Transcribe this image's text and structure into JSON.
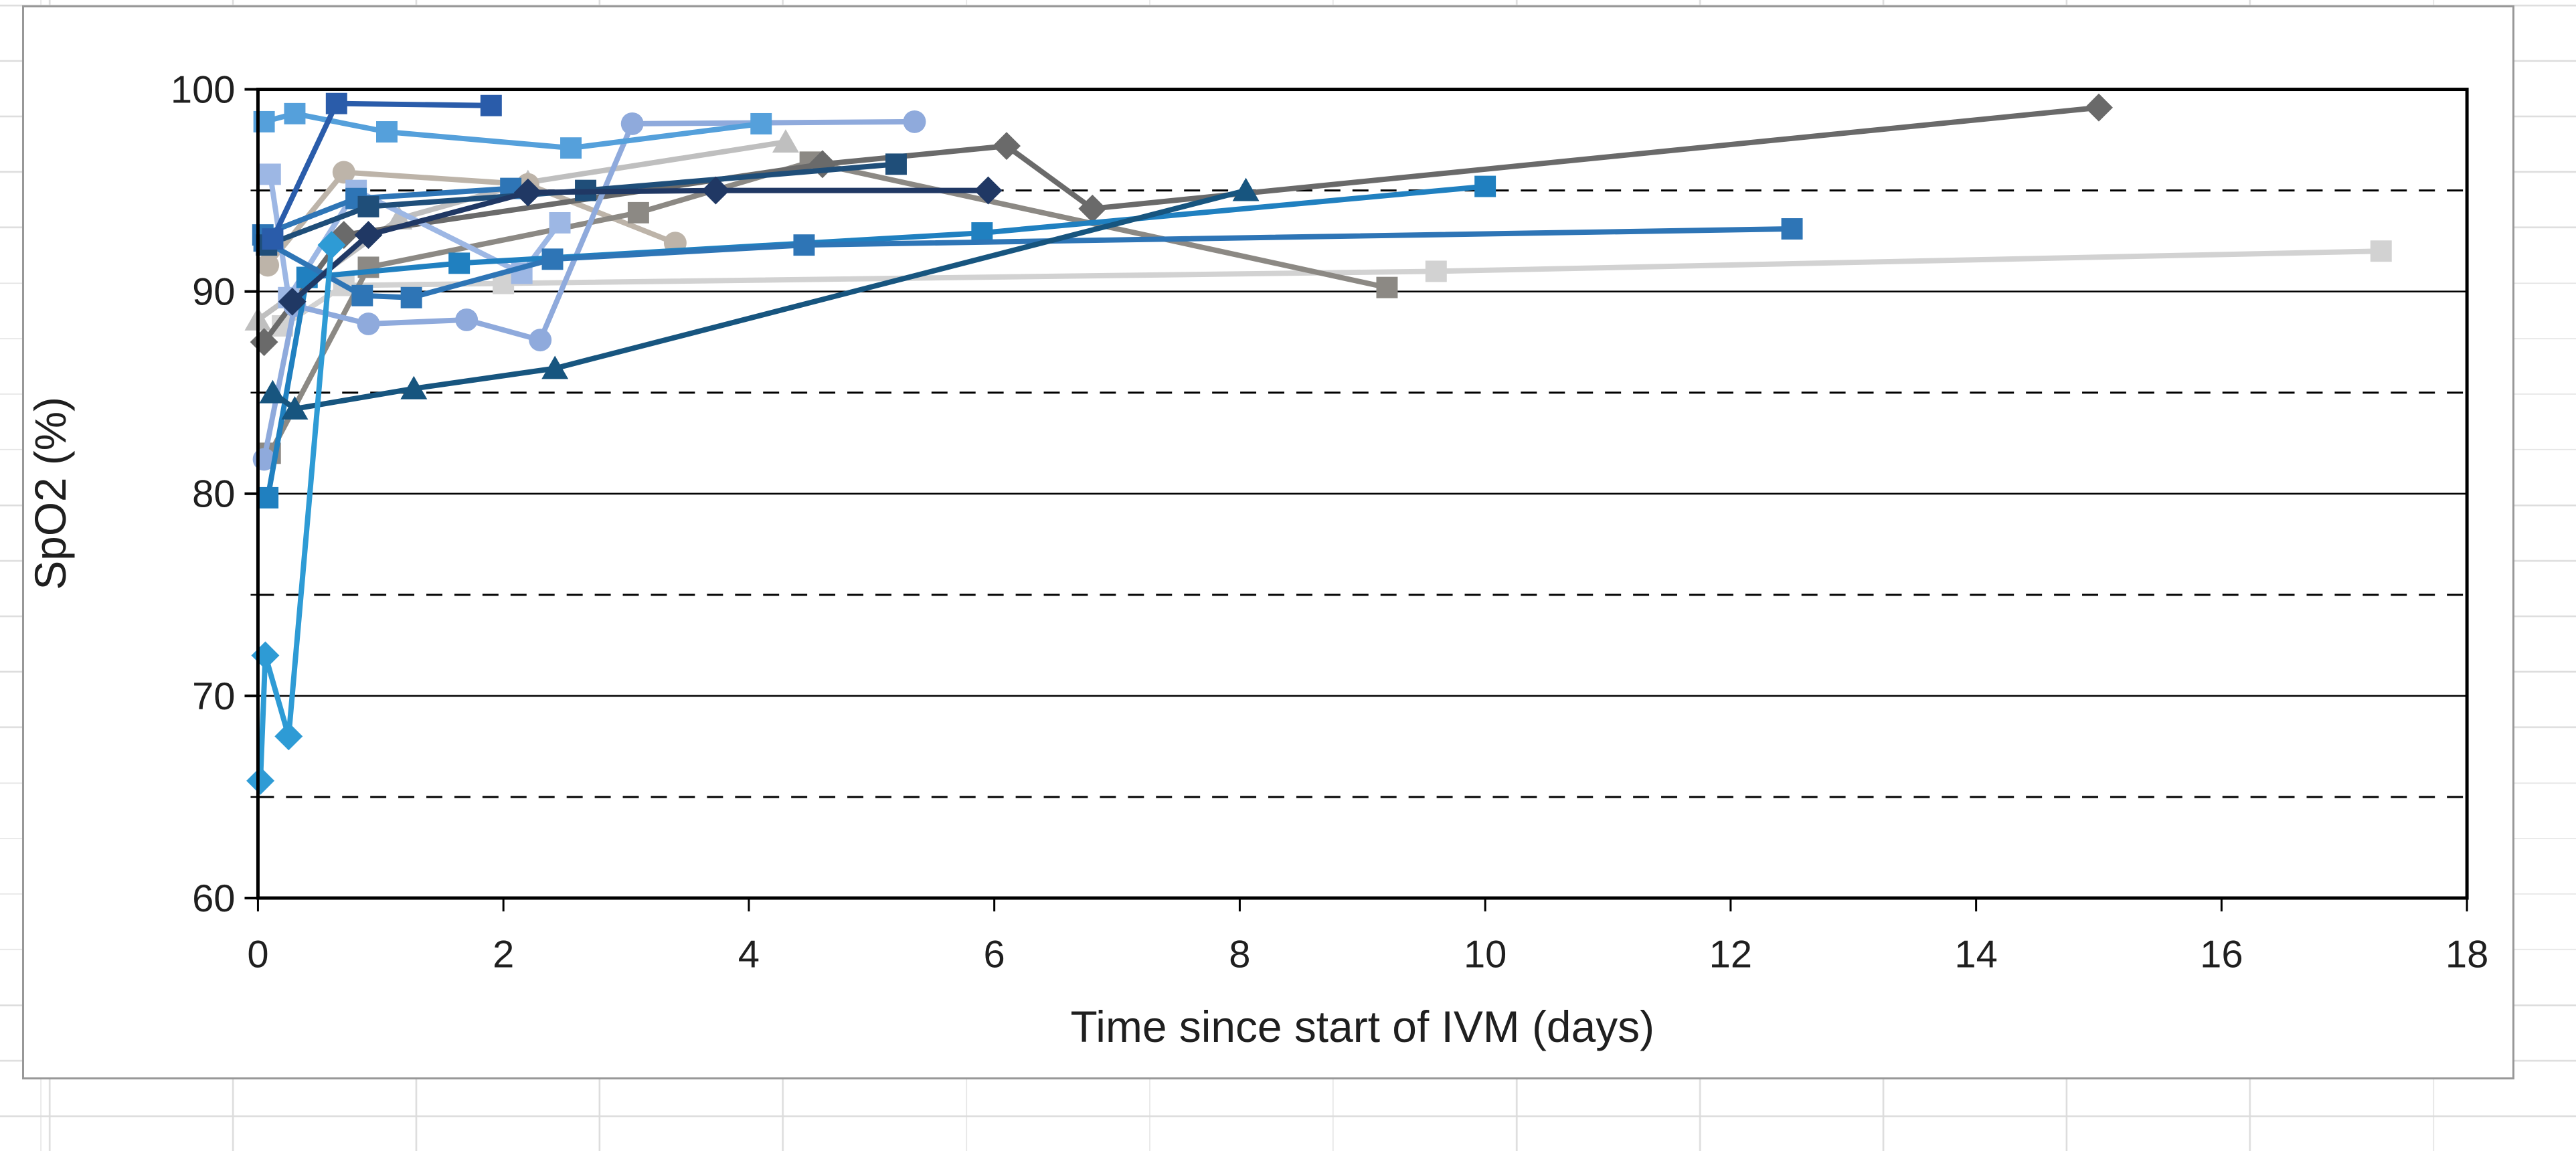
{
  "window": {
    "kind": "spreadsheet-embedded-chart",
    "chart_border_color": "#989898",
    "cell_grid_color": "#dcdcdc"
  },
  "chart_data": {
    "type": "line",
    "title": "",
    "xlabel": "Time since start of IVM (days)",
    "ylabel": "SpO2 (%)",
    "xlim": [
      0,
      18
    ],
    "ylim": [
      60,
      100
    ],
    "x_ticks": [
      0,
      2,
      4,
      6,
      8,
      10,
      12,
      14,
      16,
      18
    ],
    "y_ticks": [
      60,
      70,
      80,
      90,
      100
    ],
    "major_gridlines": [
      60,
      70,
      80,
      90,
      100
    ],
    "minor_gridlines_dashed": [
      65,
      75,
      85,
      95
    ],
    "legend": "none",
    "grid": "major solid black, minor dashed black",
    "axis_color": "#000000",
    "series": [
      {
        "name": "series-14",
        "color": "#D2D2D2",
        "marker": "square",
        "points": [
          [
            0.2,
            88.3
          ],
          [
            0.7,
            90.3
          ],
          [
            2.0,
            90.4
          ],
          [
            9.6,
            91.0
          ],
          [
            17.3,
            92.0
          ]
        ]
      },
      {
        "name": "series-15",
        "color": "#BFBFBF",
        "marker": "triangle",
        "points": [
          [
            0.0,
            88.6
          ],
          [
            1.15,
            93.6
          ],
          [
            2.2,
            95.4
          ],
          [
            4.3,
            97.4
          ]
        ]
      },
      {
        "name": "series-16",
        "color": "#BDB4A9",
        "marker": "circle",
        "points": [
          [
            0.08,
            91.3
          ],
          [
            0.7,
            95.9
          ],
          [
            2.2,
            95.3
          ],
          [
            3.4,
            92.4
          ]
        ]
      },
      {
        "name": "series-13",
        "color": "#8C8984",
        "marker": "square",
        "points": [
          [
            0.1,
            82.0
          ],
          [
            0.9,
            91.2
          ],
          [
            3.1,
            93.9
          ],
          [
            4.5,
            96.4
          ],
          [
            9.2,
            90.2
          ]
        ]
      },
      {
        "name": "series-12",
        "color": "#6A6A6A",
        "marker": "diamond",
        "points": [
          [
            0.05,
            87.5
          ],
          [
            0.7,
            92.8
          ],
          [
            4.6,
            96.3
          ],
          [
            6.1,
            97.2
          ],
          [
            6.8,
            94.1
          ],
          [
            15.0,
            99.1
          ]
        ]
      },
      {
        "name": "series-03",
        "color": "#8FAADC",
        "marker": "circle",
        "points": [
          [
            0.05,
            81.7
          ],
          [
            0.3,
            89.3
          ],
          [
            0.9,
            88.4
          ],
          [
            1.7,
            88.6
          ],
          [
            2.3,
            87.6
          ],
          [
            3.05,
            98.3
          ],
          [
            5.35,
            98.4
          ]
        ]
      },
      {
        "name": "series-04",
        "color": "#9DB7E4",
        "marker": "square",
        "points": [
          [
            0.1,
            95.8
          ],
          [
            0.25,
            89.7
          ],
          [
            0.8,
            95.0
          ],
          [
            2.15,
            90.9
          ],
          [
            2.46,
            93.4
          ]
        ]
      },
      {
        "name": "series-02",
        "color": "#55A0DB",
        "marker": "square",
        "points": [
          [
            0.05,
            98.4
          ],
          [
            0.3,
            98.8
          ],
          [
            1.05,
            97.9
          ],
          [
            2.55,
            97.1
          ],
          [
            4.1,
            98.3
          ]
        ]
      },
      {
        "name": "series-09",
        "color": "#2080C0",
        "marker": "square",
        "points": [
          [
            0.08,
            79.8
          ],
          [
            0.4,
            90.7
          ],
          [
            1.64,
            91.4
          ],
          [
            5.9,
            92.9
          ],
          [
            10.0,
            95.2
          ]
        ]
      },
      {
        "name": "series-08",
        "color": "#2E75B6",
        "marker": "square",
        "points": [
          [
            0.05,
            92.5
          ],
          [
            0.85,
            89.8
          ],
          [
            1.25,
            89.7
          ],
          [
            2.4,
            91.6
          ],
          [
            4.45,
            92.3
          ],
          [
            12.5,
            93.1
          ]
        ]
      },
      {
        "name": "series-05",
        "color": "#2E75B6",
        "marker": "square",
        "points": [
          [
            0.04,
            92.8
          ],
          [
            0.8,
            94.6
          ],
          [
            2.06,
            95.1
          ]
        ]
      },
      {
        "name": "series-10",
        "color": "#17557F",
        "marker": "triangle",
        "points": [
          [
            0.12,
            85.0
          ],
          [
            0.3,
            84.2
          ],
          [
            1.27,
            85.2
          ],
          [
            2.42,
            86.2
          ],
          [
            8.05,
            95.0
          ]
        ]
      },
      {
        "name": "series-06",
        "color": "#1F4E79",
        "marker": "square",
        "points": [
          [
            0.07,
            92.3
          ],
          [
            0.9,
            94.2
          ],
          [
            2.67,
            95.0
          ],
          [
            5.2,
            96.3
          ]
        ]
      },
      {
        "name": "series-07",
        "color": "#203864",
        "marker": "diamond",
        "points": [
          [
            0.28,
            89.5
          ],
          [
            0.9,
            92.8
          ],
          [
            2.2,
            94.9
          ],
          [
            3.73,
            95.0
          ],
          [
            5.95,
            95.0
          ]
        ]
      },
      {
        "name": "series-01",
        "color": "#2A5CAA",
        "marker": "square",
        "points": [
          [
            0.12,
            92.6
          ],
          [
            0.64,
            99.3
          ],
          [
            1.9,
            99.2
          ]
        ]
      },
      {
        "name": "series-11",
        "color": "#2E9BD5",
        "marker": "diamond",
        "points": [
          [
            0.02,
            65.8
          ],
          [
            0.06,
            72.0
          ],
          [
            0.25,
            68.0
          ],
          [
            0.6,
            92.3
          ]
        ]
      }
    ]
  }
}
